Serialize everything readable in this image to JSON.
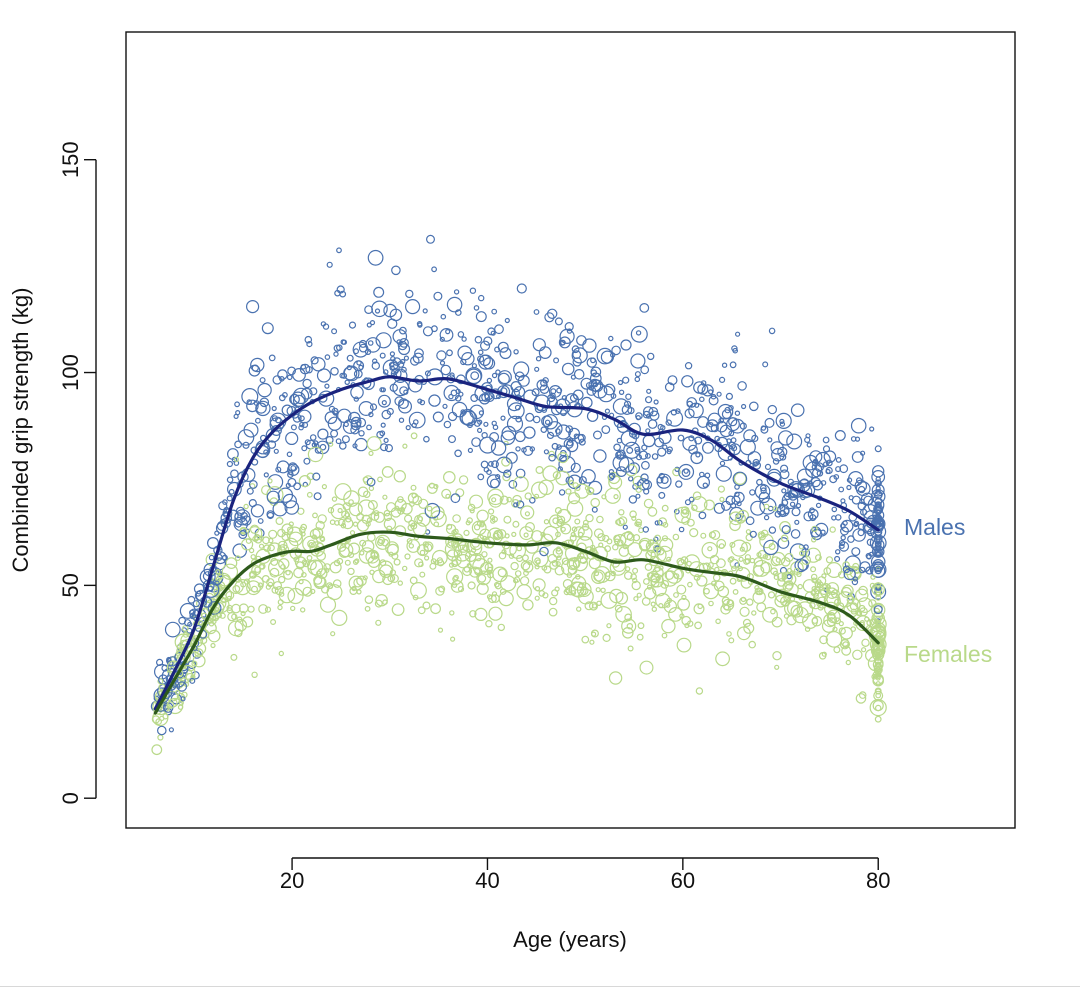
{
  "chart_data": {
    "type": "scatter",
    "title": "",
    "xlabel": "Age (years)",
    "ylabel": "Combinded grip strength (kg)",
    "xlim": [
      3,
      94
    ],
    "ylim": [
      -7,
      180
    ],
    "xticks": [
      20,
      40,
      60,
      80
    ],
    "xtick_labels": [
      "20",
      "40",
      "60",
      "80"
    ],
    "yticks": [
      0,
      50,
      100,
      150
    ],
    "ytick_labels": [
      "0",
      "50",
      "100",
      "150"
    ],
    "grid": false,
    "series": [
      {
        "name": "Males",
        "label": "Males",
        "color": "#4a72b0",
        "curve_color": "#1a237e",
        "marker": "open-circle",
        "trend": [
          {
            "x": 6,
            "y": 21
          },
          {
            "x": 8,
            "y": 30
          },
          {
            "x": 10,
            "y": 40
          },
          {
            "x": 12,
            "y": 55
          },
          {
            "x": 14,
            "y": 70
          },
          {
            "x": 16,
            "y": 80
          },
          {
            "x": 18,
            "y": 86
          },
          {
            "x": 20,
            "y": 90
          },
          {
            "x": 22,
            "y": 93
          },
          {
            "x": 25,
            "y": 96
          },
          {
            "x": 28,
            "y": 98
          },
          {
            "x": 30,
            "y": 99
          },
          {
            "x": 33,
            "y": 98
          },
          {
            "x": 36,
            "y": 98.5
          },
          {
            "x": 40,
            "y": 96
          },
          {
            "x": 43,
            "y": 94
          },
          {
            "x": 46,
            "y": 92
          },
          {
            "x": 50,
            "y": 91.5
          },
          {
            "x": 53,
            "y": 89
          },
          {
            "x": 56,
            "y": 85.5
          },
          {
            "x": 60,
            "y": 86.5
          },
          {
            "x": 63,
            "y": 84
          },
          {
            "x": 66,
            "y": 79
          },
          {
            "x": 70,
            "y": 74
          },
          {
            "x": 74,
            "y": 70.5
          },
          {
            "x": 77,
            "y": 67.5
          },
          {
            "x": 80,
            "y": 63
          }
        ],
        "scatter_model": {
          "x_range": [
            6,
            80
          ],
          "spread_sd": 11,
          "count": 1100
        }
      },
      {
        "name": "Females",
        "label": "Females",
        "color": "#b9d98a",
        "curve_color": "#2e5a1c",
        "marker": "open-circle",
        "trend": [
          {
            "x": 6,
            "y": 20
          },
          {
            "x": 8,
            "y": 28
          },
          {
            "x": 10,
            "y": 36
          },
          {
            "x": 12,
            "y": 45
          },
          {
            "x": 14,
            "y": 51
          },
          {
            "x": 16,
            "y": 55
          },
          {
            "x": 18,
            "y": 57
          },
          {
            "x": 20,
            "y": 58
          },
          {
            "x": 22,
            "y": 58
          },
          {
            "x": 24,
            "y": 59.5
          },
          {
            "x": 27,
            "y": 62
          },
          {
            "x": 30,
            "y": 62.5
          },
          {
            "x": 33,
            "y": 61.5
          },
          {
            "x": 36,
            "y": 61
          },
          {
            "x": 40,
            "y": 60
          },
          {
            "x": 44,
            "y": 59.5
          },
          {
            "x": 47,
            "y": 60
          },
          {
            "x": 50,
            "y": 58
          },
          {
            "x": 53,
            "y": 55.5
          },
          {
            "x": 56,
            "y": 56
          },
          {
            "x": 60,
            "y": 54
          },
          {
            "x": 63,
            "y": 53
          },
          {
            "x": 66,
            "y": 52
          },
          {
            "x": 70,
            "y": 48.5
          },
          {
            "x": 74,
            "y": 46
          },
          {
            "x": 77,
            "y": 43
          },
          {
            "x": 80,
            "y": 36.5
          }
        ],
        "scatter_model": {
          "x_range": [
            6,
            80
          ],
          "spread_sd": 9,
          "count": 1200
        }
      }
    ],
    "annotations": [
      {
        "text": "Males",
        "color": "#4a72b0",
        "x": 82,
        "y": 64
      },
      {
        "text": "Females",
        "color": "#b9d98a",
        "x": 82,
        "y": 34
      }
    ]
  }
}
